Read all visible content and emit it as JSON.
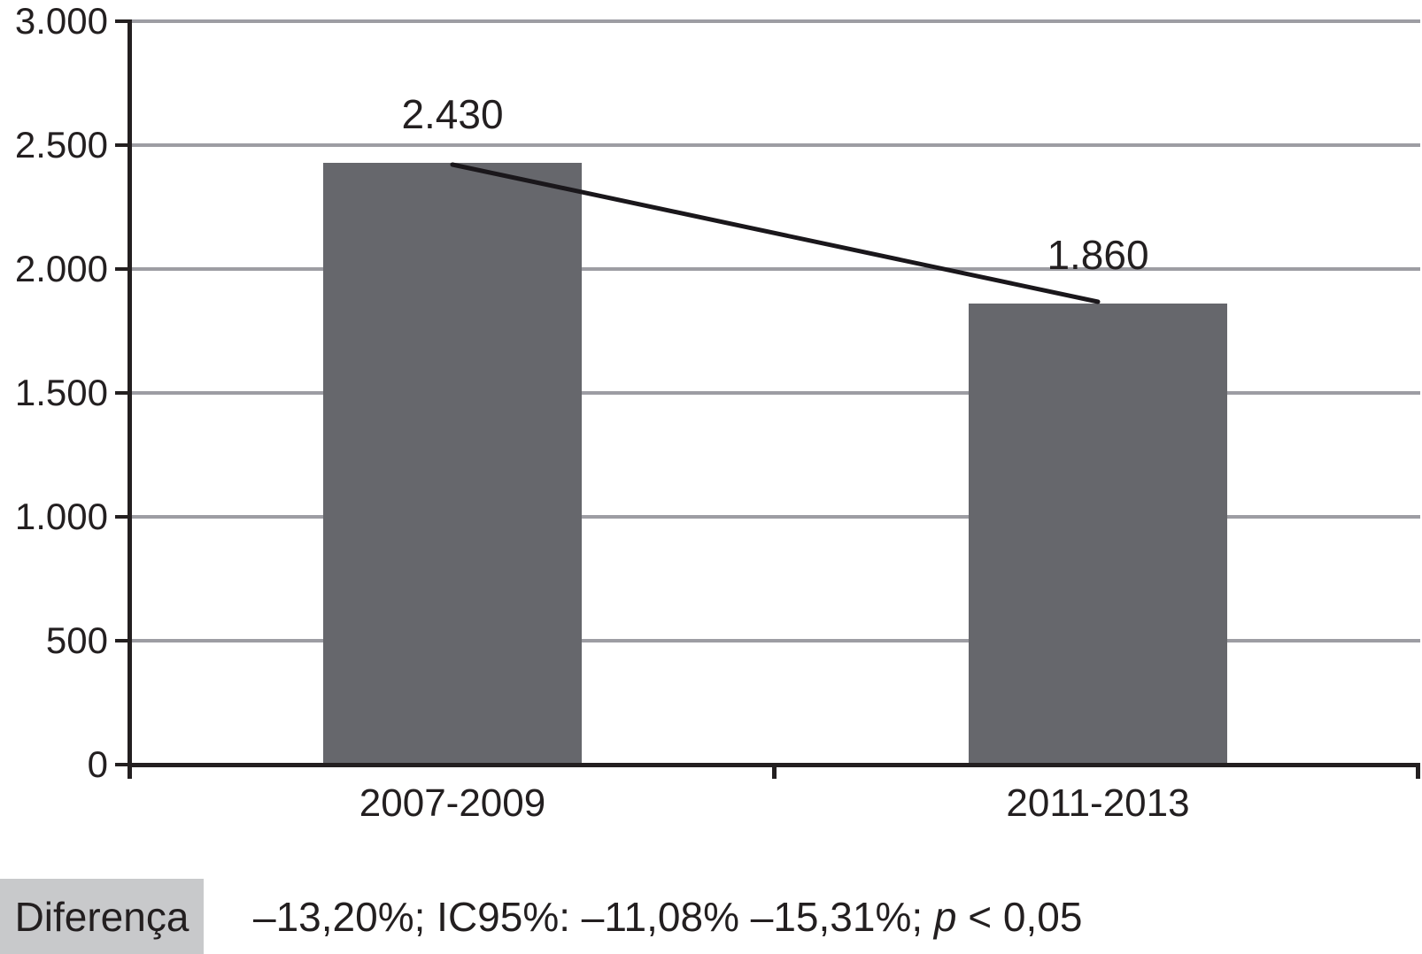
{
  "chart_data": {
    "type": "bar",
    "categories": [
      "2007-2009",
      "2011-2013"
    ],
    "values": [
      2430,
      1860
    ],
    "value_labels": [
      "2.430",
      "1.860"
    ],
    "title": "",
    "xlabel": "",
    "ylabel": "",
    "ylim": [
      0,
      3000
    ],
    "ytick_step": 500,
    "ytick_labels": [
      "0",
      "500",
      "1.000",
      "1.500",
      "2.000",
      "2.500",
      "3.000"
    ],
    "grid": true,
    "legend": false,
    "trend_line_between_bar_tops": true,
    "colors": {
      "bar": "#66676c",
      "gridline": "#9d9da3",
      "axis": "#231f20",
      "trend_line": "#1a171b",
      "footer_label_bg": "#c8c9cb",
      "text": "#231f20"
    }
  },
  "footer": {
    "label": "Diferença",
    "stats_prefix": "–13,20%; IC95%: –11,08% –15,31%; ",
    "stats_italic": "p",
    "stats_suffix": " < 0,05"
  }
}
